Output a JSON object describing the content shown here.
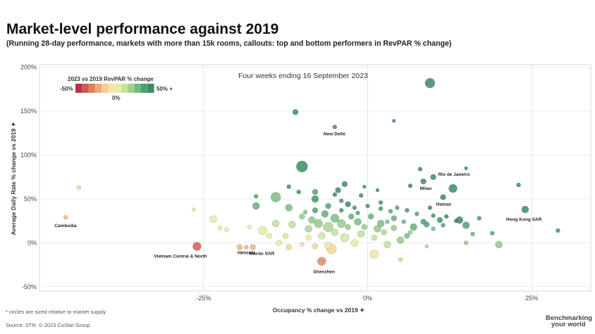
{
  "header": {
    "title": "Market-level performance against 2019",
    "subtitle": "(Running 28-day performance, markets with more than 15k rooms, callouts: top and bottom performers in RevPAR % change)"
  },
  "footer": {
    "note": "* circles are sized relative to market supply",
    "source": "Source: STR. © 2023 CoStar Group",
    "brand_line1": "Benchmarking",
    "brand_line2": "your world"
  },
  "chart_data": {
    "type": "scatter",
    "title": "Market-level performance against 2019",
    "annotation": "Four weeks ending 16 September 2023",
    "xlabel": "Occupancy % change vs 2019 ✦",
    "ylabel": "Average Daily Rate % change vs 2019 ✦",
    "xlim": [
      -50,
      34
    ],
    "ylim": [
      -55,
      203
    ],
    "x_ticks": [
      -25,
      0,
      25
    ],
    "x_tick_labels": [
      "-25%",
      "0%",
      "25%"
    ],
    "y_ticks": [
      200,
      150,
      100,
      50,
      0,
      -50
    ],
    "y_tick_labels": [
      "200%",
      "150%",
      "100%",
      "50%",
      "0%",
      "-50%"
    ],
    "grid": true,
    "legend": {
      "title": "2023 vs 2019 RevPAR % change",
      "min_label": "-50%",
      "mid_label": "0%",
      "max_label": "50% +",
      "colors": [
        "#b7334a",
        "#cf5a52",
        "#e0805a",
        "#ecab76",
        "#f3ce94",
        "#f3e6a6",
        "#e2eea8",
        "#c5e39d",
        "#9ed08e",
        "#70b980",
        "#4c9f70",
        "#3b8c63"
      ],
      "placement": "top-left"
    },
    "series": [
      {
        "points": [
          {
            "x": 9.5,
            "y": 182,
            "size": 7,
            "rev": 50
          },
          {
            "x": -11,
            "y": 149,
            "size": 4,
            "rev": 50
          },
          {
            "x": -5,
            "y": 132,
            "size": 3,
            "rev": 50,
            "label": "New Delhi"
          },
          {
            "x": 4,
            "y": 139,
            "size": 2.5,
            "rev": 50
          },
          {
            "x": -10,
            "y": 87,
            "size": 8,
            "rev": 50
          },
          {
            "x": 13,
            "y": 62,
            "size": 6,
            "rev": 50
          },
          {
            "x": 24,
            "y": 38,
            "size": 5,
            "rev": 50,
            "label": "Hong Kong SAR"
          },
          {
            "x": 23,
            "y": 66,
            "size": 3,
            "rev": 50
          },
          {
            "x": 15,
            "y": 85,
            "size": 2.5,
            "rev": 50
          },
          {
            "x": 8,
            "y": 84,
            "size": 3,
            "rev": 50
          },
          {
            "x": 10,
            "y": 75,
            "size": 4,
            "rev": 50,
            "label": "Rio de Janeiro"
          },
          {
            "x": 8.5,
            "y": 70,
            "size": 4,
            "rev": 50,
            "label": "Milan"
          },
          {
            "x": 6.5,
            "y": 65,
            "size": 3,
            "rev": 50
          },
          {
            "x": 11.5,
            "y": 52,
            "size": 4,
            "rev": 50,
            "label": "Hainan"
          },
          {
            "x": 9.5,
            "y": 40,
            "size": 3,
            "rev": 50
          },
          {
            "x": 29,
            "y": 14,
            "size": 3,
            "rev": 45
          },
          {
            "x": 19,
            "y": 11,
            "size": 3,
            "rev": 40
          },
          {
            "x": 20,
            "y": -2,
            "size": 5,
            "rev": 25
          },
          {
            "x": 15,
            "y": 0,
            "size": 3,
            "rev": 25
          },
          {
            "x": 15,
            "y": 20,
            "size": 5,
            "rev": 40
          },
          {
            "x": 12,
            "y": 30,
            "size": 3,
            "rev": 50
          },
          {
            "x": 13.5,
            "y": 25,
            "size": 3,
            "rev": 50
          },
          {
            "x": 16,
            "y": 10,
            "size": 3,
            "rev": 35
          },
          {
            "x": 9,
            "y": -4,
            "size": 2.5,
            "rev": 20
          },
          {
            "x": 6,
            "y": 8,
            "size": 4,
            "rev": 30
          },
          {
            "x": 5,
            "y": 3,
            "size": 5,
            "rev": 25
          },
          {
            "x": 3,
            "y": -2,
            "size": 5,
            "rev": 15
          },
          {
            "x": -7,
            "y": -21,
            "size": 6,
            "rev": -30,
            "label": "Shenzhen"
          },
          {
            "x": -5.5,
            "y": -7,
            "size": 7,
            "rev": -10
          },
          {
            "x": -6,
            "y": -3,
            "size": 5,
            "rev": -5
          },
          {
            "x": -8,
            "y": -4,
            "size": 4,
            "rev": -10
          },
          {
            "x": 1,
            "y": -13,
            "size": 6,
            "rev": -5
          },
          {
            "x": 5,
            "y": -19,
            "size": 3,
            "rev": -15
          },
          {
            "x": -26,
            "y": -4,
            "size": 6,
            "rev": -40,
            "label": "Vietnam Central & North"
          },
          {
            "x": -19.5,
            "y": -5,
            "size": 4,
            "rev": -20,
            "label": "Helsinki"
          },
          {
            "x": -18.5,
            "y": -5,
            "size": 3,
            "rev": -20
          },
          {
            "x": -17.5,
            "y": -5,
            "size": 4,
            "rev": -20,
            "label": "Macau SAR"
          },
          {
            "x": -16,
            "y": 14,
            "size": 6,
            "rev": 5
          },
          {
            "x": -23.5,
            "y": 27,
            "size": 5,
            "rev": 5
          },
          {
            "x": -22.5,
            "y": 17,
            "size": 3,
            "rev": 0
          },
          {
            "x": -21.5,
            "y": 15,
            "size": 3,
            "rev": 0
          },
          {
            "x": -18,
            "y": 18,
            "size": 3,
            "rev": 5
          },
          {
            "x": -26.5,
            "y": 38,
            "size": 2.5,
            "rev": 10
          },
          {
            "x": -44,
            "y": 63,
            "size": 3,
            "rev": 10
          },
          {
            "x": -46,
            "y": 29,
            "size": 3,
            "rev": -20,
            "label": "Cambodia"
          },
          {
            "x": -14,
            "y": 52,
            "size": 7,
            "rev": 30
          },
          {
            "x": -17,
            "y": 42,
            "size": 5,
            "rev": 35
          },
          {
            "x": -17,
            "y": 53,
            "size": 3,
            "rev": 40
          },
          {
            "x": -12,
            "y": 40,
            "size": 5,
            "rev": 30
          },
          {
            "x": -10.5,
            "y": 58,
            "size": 3,
            "rev": 50
          },
          {
            "x": -12,
            "y": 64,
            "size": 3,
            "rev": 50
          },
          {
            "x": -8,
            "y": 50,
            "size": 5,
            "rev": 45
          },
          {
            "x": -8,
            "y": 58,
            "size": 4,
            "rev": 40
          },
          {
            "x": -8,
            "y": 37,
            "size": 4,
            "rev": 40
          },
          {
            "x": -4.5,
            "y": 60,
            "size": 4,
            "rev": 50
          },
          {
            "x": -3.5,
            "y": 67,
            "size": 4,
            "rev": 50
          },
          {
            "x": -5,
            "y": 55,
            "size": 3,
            "rev": 50
          },
          {
            "x": -1,
            "y": 54,
            "size": 3,
            "rev": 50
          },
          {
            "x": -0.5,
            "y": 64,
            "size": 2.5,
            "rev": 50
          },
          {
            "x": 1.5,
            "y": 60,
            "size": 2.5,
            "rev": 50
          },
          {
            "x": -4,
            "y": 48,
            "size": 3,
            "rev": 45
          },
          {
            "x": -3,
            "y": 44,
            "size": 4,
            "rev": 50
          },
          {
            "x": -2,
            "y": 40,
            "size": 3,
            "rev": 45
          },
          {
            "x": 0,
            "y": 42,
            "size": 3,
            "rev": 45
          },
          {
            "x": 2,
            "y": 39,
            "size": 3,
            "rev": 45
          },
          {
            "x": 3.5,
            "y": 36,
            "size": 3,
            "rev": 40
          },
          {
            "x": 4.5,
            "y": 40,
            "size": 3,
            "rev": 40
          },
          {
            "x": 6,
            "y": 37,
            "size": 3,
            "rev": 45
          },
          {
            "x": 7.5,
            "y": 33,
            "size": 3,
            "rev": 40
          },
          {
            "x": 8.5,
            "y": 24,
            "size": 4,
            "rev": 40
          },
          {
            "x": 10,
            "y": 31,
            "size": 3,
            "rev": 45
          },
          {
            "x": 11,
            "y": 26,
            "size": 4,
            "rev": 45
          },
          {
            "x": 14,
            "y": 26,
            "size": 5,
            "rev": 50
          },
          {
            "x": 7,
            "y": 18,
            "size": 5,
            "rev": 35
          },
          {
            "x": 9,
            "y": 21,
            "size": 4,
            "rev": 40
          },
          {
            "x": 10,
            "y": 16,
            "size": 3,
            "rev": 30
          },
          {
            "x": 11.5,
            "y": 20,
            "size": 3,
            "rev": 40
          },
          {
            "x": 4,
            "y": 28,
            "size": 4,
            "rev": 35
          },
          {
            "x": 2,
            "y": 22,
            "size": 5,
            "rev": 30
          },
          {
            "x": 0.5,
            "y": 30,
            "size": 4,
            "rev": 35
          },
          {
            "x": -1.5,
            "y": 24,
            "size": 5,
            "rev": 30
          },
          {
            "x": -3,
            "y": 18,
            "size": 4,
            "rev": 25
          },
          {
            "x": -5,
            "y": 28,
            "size": 6,
            "rev": 30
          },
          {
            "x": -6.5,
            "y": 33,
            "size": 5,
            "rev": 35
          },
          {
            "x": -7.5,
            "y": 22,
            "size": 6,
            "rev": 25
          },
          {
            "x": -9,
            "y": 16,
            "size": 5,
            "rev": 20
          },
          {
            "x": -10,
            "y": 30,
            "size": 4,
            "rev": 25
          },
          {
            "x": -11.5,
            "y": 21,
            "size": 5,
            "rev": 15
          },
          {
            "x": -12.5,
            "y": 8,
            "size": 4,
            "rev": 10
          },
          {
            "x": -14,
            "y": 22,
            "size": 5,
            "rev": 15
          },
          {
            "x": -15,
            "y": 8,
            "size": 4,
            "rev": 0
          },
          {
            "x": -13.5,
            "y": 0,
            "size": 4,
            "rev": -5
          },
          {
            "x": -12,
            "y": -5,
            "size": 4,
            "rev": -10
          },
          {
            "x": -10,
            "y": -2,
            "size": 3,
            "rev": -5
          },
          {
            "x": -9,
            "y": 6,
            "size": 4,
            "rev": 5
          },
          {
            "x": -7,
            "y": 8,
            "size": 5,
            "rev": 10
          },
          {
            "x": -5,
            "y": 12,
            "size": 5,
            "rev": 15
          },
          {
            "x": -3.5,
            "y": 6,
            "size": 6,
            "rev": 10
          },
          {
            "x": -2,
            "y": 0,
            "size": 5,
            "rev": 5
          },
          {
            "x": -1,
            "y": 10,
            "size": 5,
            "rev": 15
          },
          {
            "x": 1,
            "y": 6,
            "size": 4,
            "rev": 15
          },
          {
            "x": 2.5,
            "y": 12,
            "size": 4,
            "rev": 20
          },
          {
            "x": 4,
            "y": 17,
            "size": 4,
            "rev": 25
          },
          {
            "x": 5.5,
            "y": 24,
            "size": 3,
            "rev": 35
          },
          {
            "x": 6.5,
            "y": 12,
            "size": 3,
            "rev": 25
          },
          {
            "x": -6,
            "y": 18,
            "size": 7,
            "rev": 20
          },
          {
            "x": -8.5,
            "y": 26,
            "size": 5,
            "rev": 25
          },
          {
            "x": -4,
            "y": 22,
            "size": 6,
            "rev": 25
          },
          {
            "x": -2.5,
            "y": 30,
            "size": 4,
            "rev": 35
          },
          {
            "x": -0.5,
            "y": 18,
            "size": 4,
            "rev": 25
          },
          {
            "x": 1.5,
            "y": 16,
            "size": 5,
            "rev": 25
          },
          {
            "x": 3,
            "y": 24,
            "size": 3,
            "rev": 30
          },
          {
            "x": -9.5,
            "y": 35,
            "size": 3,
            "rev": 30
          },
          {
            "x": -1.5,
            "y": 34,
            "size": 3,
            "rev": 40
          },
          {
            "x": -6,
            "y": 42,
            "size": 4,
            "rev": 40
          },
          {
            "x": -4,
            "y": 37,
            "size": 3,
            "rev": 45
          },
          {
            "x": 2,
            "y": 46,
            "size": 3,
            "rev": 45
          },
          {
            "x": 17,
            "y": 28,
            "size": 3,
            "rev": 45
          }
        ]
      }
    ]
  }
}
